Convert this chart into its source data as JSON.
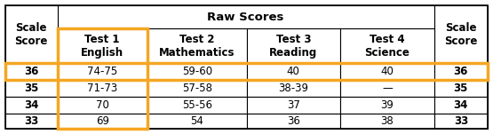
{
  "title": "Raw Scores",
  "col_headers": [
    "Scale\nScore",
    "Test 1\nEnglish",
    "Test 2\nMathematics",
    "Test 3\nReading",
    "Test 4\nScience",
    "Scale\nScore"
  ],
  "rows": [
    [
      "36",
      "74-75",
      "59-60",
      "40",
      "40",
      "36"
    ],
    [
      "35",
      "71-73",
      "57-58",
      "38-39",
      "—",
      "35"
    ],
    [
      "34",
      "70",
      "55-56",
      "37",
      "39",
      "34"
    ],
    [
      "33",
      "69",
      "54",
      "36",
      "38",
      "33"
    ]
  ],
  "orange_color": "#F5A623",
  "bg_color": "#FFFFFF",
  "text_color": "#000000",
  "font_size": 8.5,
  "header_font_size": 8.5,
  "title_font_size": 9.5,
  "fig_width": 5.55,
  "fig_height": 1.51,
  "dpi": 100
}
